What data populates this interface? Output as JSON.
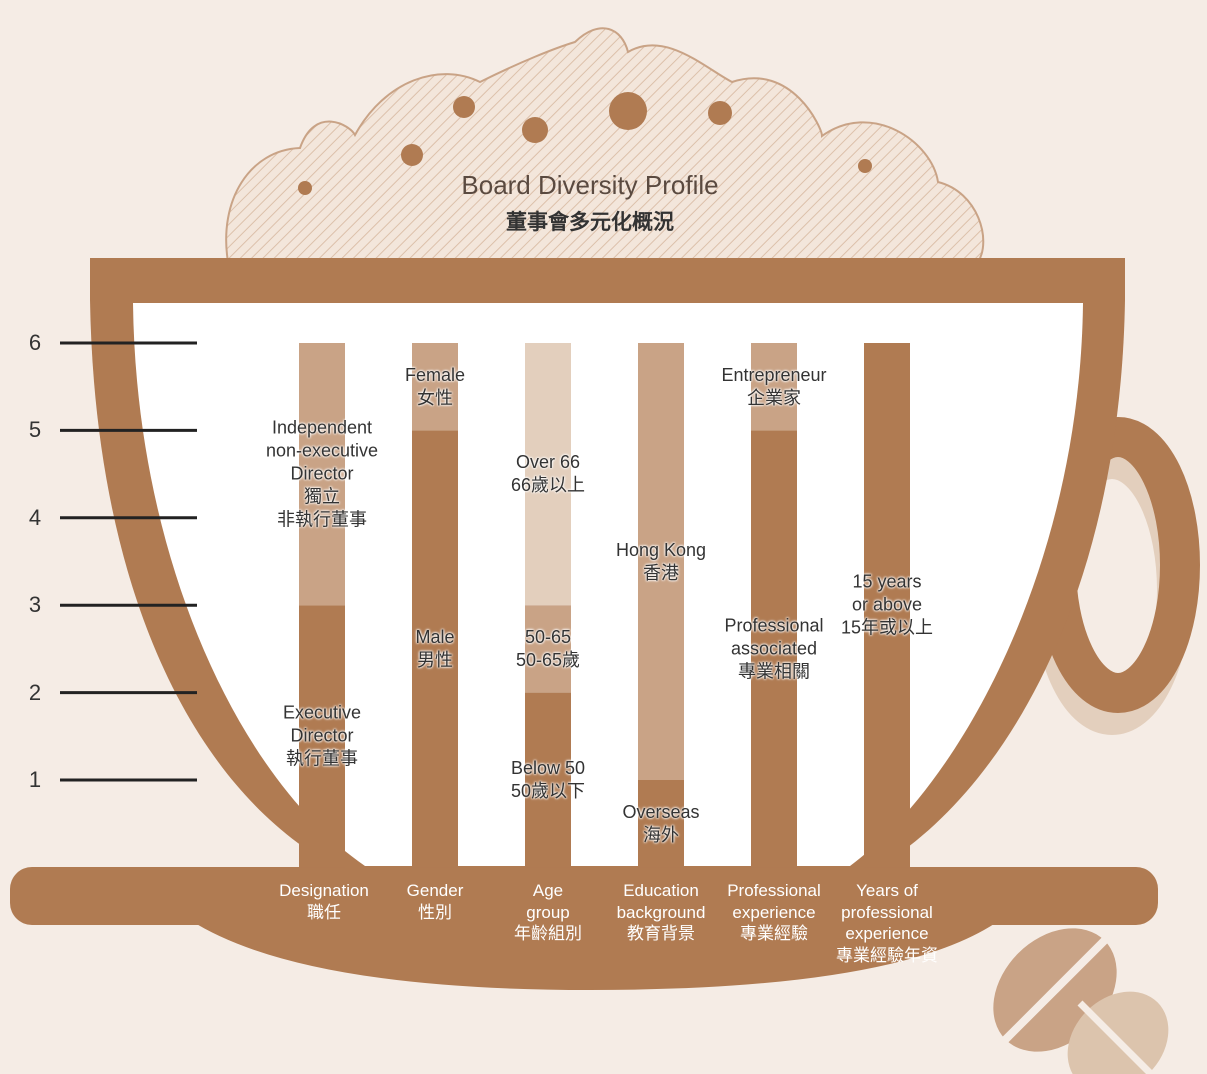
{
  "chart_data": {
    "type": "stacked-bar",
    "title": "Board Diversity Profile",
    "subtitle": "董事會多元化概況",
    "ylim": [
      0,
      6
    ],
    "yticks": [
      1,
      2,
      3,
      4,
      5,
      6
    ],
    "stacks": [
      {
        "category": "Designation\n職任",
        "segments": [
          {
            "label": "Executive\nDirector\n執行董事",
            "value": 3,
            "color": "#b07b52"
          },
          {
            "label": "Independent\nnon-executive\nDirector\n獨立\n非執行董事",
            "value": 3,
            "color": "#c9a386"
          }
        ]
      },
      {
        "category": "Gender\n性別",
        "segments": [
          {
            "label": "Male\n男性",
            "value": 5,
            "color": "#b07b52"
          },
          {
            "label": "Female\n女性",
            "value": 1,
            "color": "#c9a386"
          }
        ]
      },
      {
        "category": "Age\ngroup\n年齡組別",
        "segments": [
          {
            "label": "Below 50\n50歲以下",
            "value": 2,
            "color": "#b07b52"
          },
          {
            "label": "50-65\n50-65歲",
            "value": 1,
            "color": "#c9a386"
          },
          {
            "label": "Over 66\n66歲以上",
            "value": 3,
            "color": "#e3cfbd"
          }
        ]
      },
      {
        "category": "Education\nbackground\n教育背景",
        "segments": [
          {
            "label": "Overseas\n海外",
            "value": 1,
            "color": "#b07b52"
          },
          {
            "label": "Hong Kong\n香港",
            "value": 5,
            "color": "#c9a386"
          }
        ]
      },
      {
        "category": "Professional\nexperience\n專業經驗",
        "segments": [
          {
            "label": "Professional\nassociated\n專業相關",
            "value": 5,
            "color": "#b07b52"
          },
          {
            "label": "Entrepreneur\n企業家",
            "value": 1,
            "color": "#c9a386"
          }
        ]
      },
      {
        "category": "Years of\nprofessional\nexperience\n專業經驗年資",
        "segments": [
          {
            "label": "15 years\nor above\n15年或以上",
            "value": 6,
            "color": "#b07b52"
          }
        ]
      }
    ]
  }
}
